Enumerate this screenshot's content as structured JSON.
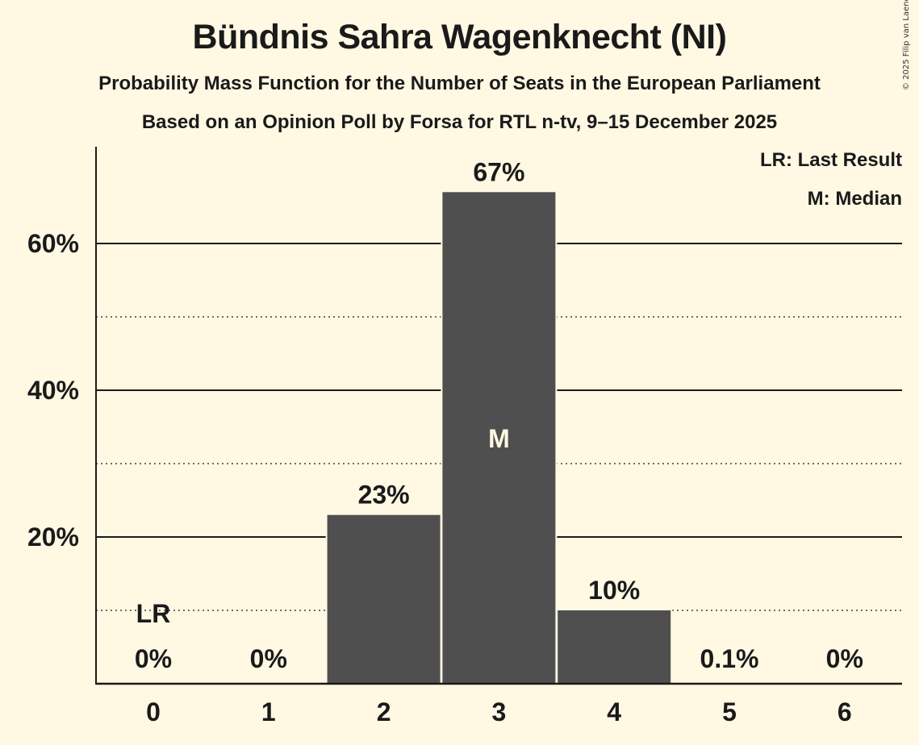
{
  "header": {
    "title": "Bündnis Sahra Wagenknecht (NI)",
    "subtitle": "Probability Mass Function for the Number of Seats in the European Parliament",
    "source": "Based on an Opinion Poll by Forsa for RTL n-tv, 9–15 December 2025",
    "copyright": "© 2025 Filip van Laenen"
  },
  "legend": {
    "last_result": "LR: Last Result",
    "median": "M: Median"
  },
  "colors": {
    "background": "#fff8e3",
    "bar": "#4f4f4f",
    "text": "#1a1a1a",
    "median_marker": "#fff8e3"
  },
  "chart_data": {
    "type": "bar",
    "title": "Bündnis Sahra Wagenknecht (NI)",
    "subtitle": "Probability Mass Function for the Number of Seats in the European Parliament",
    "caption": "Based on an Opinion Poll by Forsa for RTL n-tv, 9–15 December 2025",
    "xlabel": "",
    "ylabel": "",
    "categories": [
      "0",
      "1",
      "2",
      "3",
      "4",
      "5",
      "6"
    ],
    "values": [
      0,
      0,
      23,
      67,
      10,
      0.1,
      0
    ],
    "value_labels": [
      "0%",
      "0%",
      "23%",
      "67%",
      "10%",
      "0.1%",
      "0%"
    ],
    "ylim": [
      0,
      73
    ],
    "yticks": [
      20,
      40,
      60
    ],
    "ytick_labels": [
      "20%",
      "40%",
      "60%"
    ],
    "minor_gridlines": [
      10,
      30,
      50
    ],
    "grid": true,
    "annotations": [
      {
        "category": "0",
        "label": "LR",
        "meaning": "Last Result"
      },
      {
        "category": "3",
        "label": "M",
        "meaning": "Median"
      }
    ],
    "legend_position": "top-right"
  }
}
